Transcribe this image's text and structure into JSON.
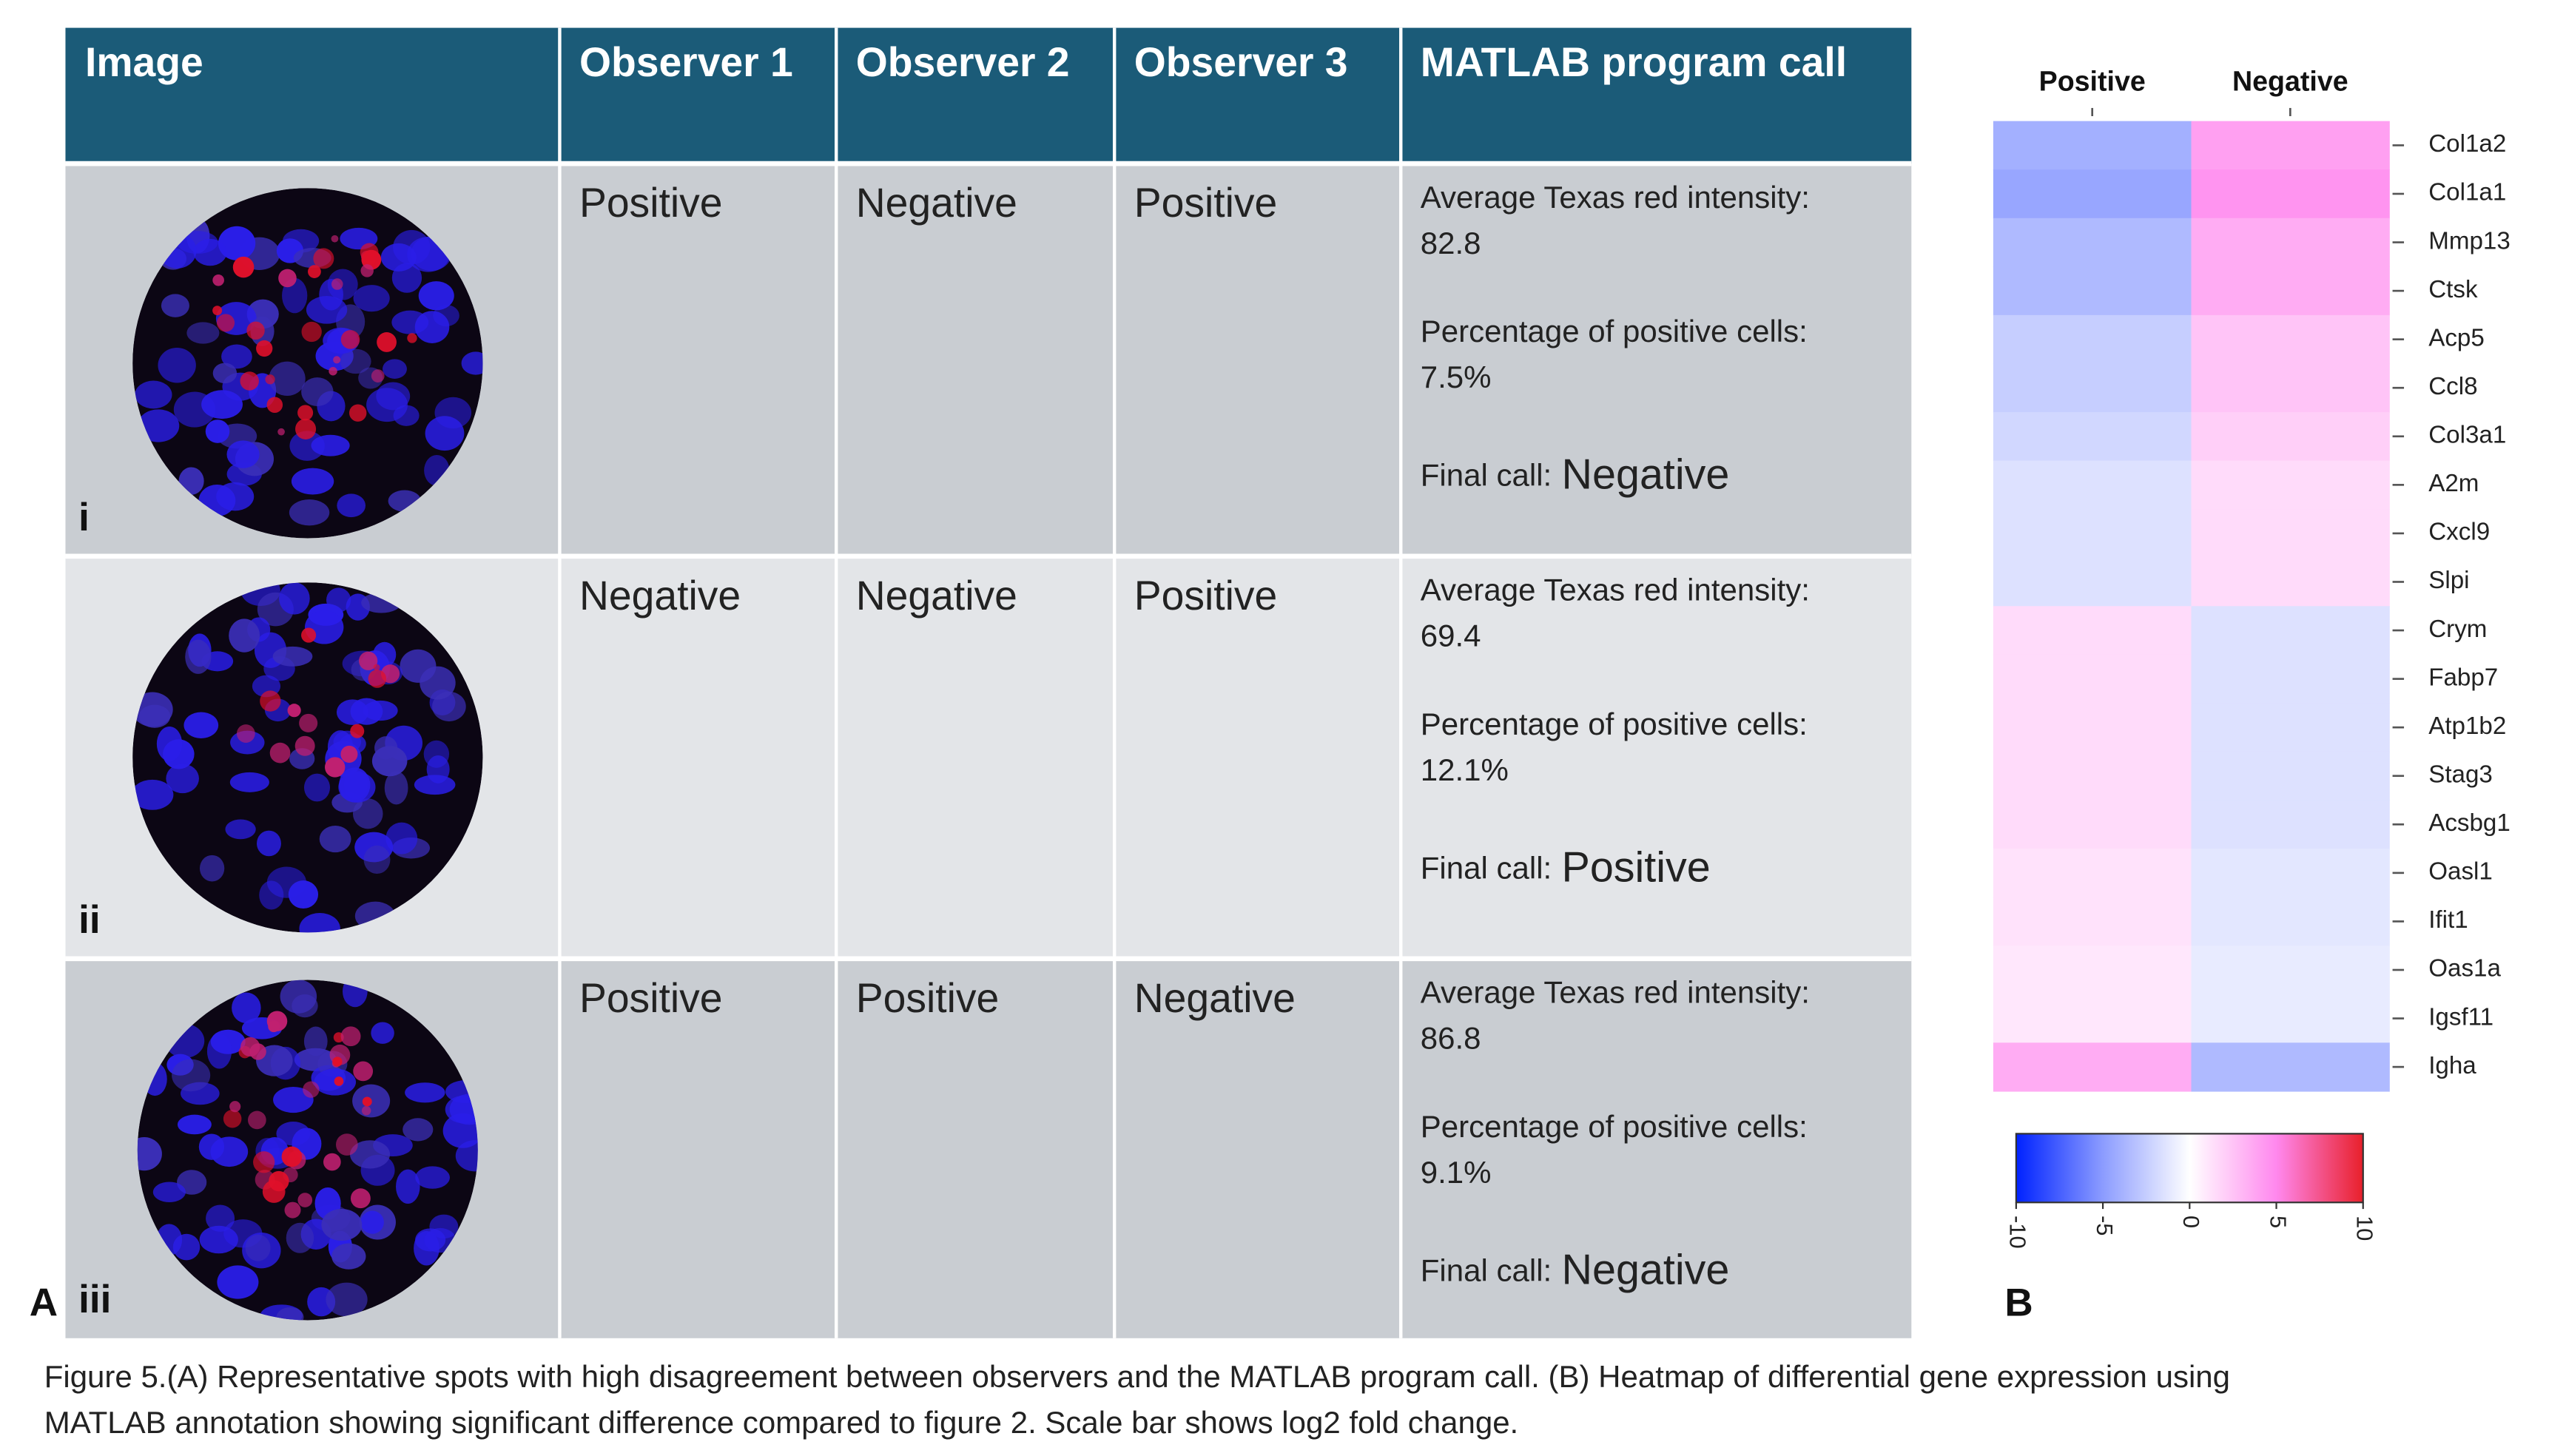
{
  "table": {
    "headers": [
      "Image",
      "Observer 1",
      "Observer 2",
      "Observer 3",
      "MATLAB program call"
    ],
    "rows": [
      {
        "label": "i",
        "observers": [
          "Positive",
          "Negative",
          "Positive"
        ],
        "intensity_label": "Average Texas red intensity:",
        "intensity": "82.8",
        "percentage_label": "Percentage of positive cells:",
        "percentage": "7.5%",
        "final_label": "Final call:",
        "final": "Negative"
      },
      {
        "label": "ii",
        "observers": [
          "Negative",
          "Negative",
          "Positive"
        ],
        "intensity_label": "Average Texas red intensity:",
        "intensity": "69.4",
        "percentage_label": "Percentage of positive cells:",
        "percentage": "12.1%",
        "final_label": "Final call:",
        "final": "Positive"
      },
      {
        "label": "iii",
        "observers": [
          "Positive",
          "Positive",
          "Negative"
        ],
        "intensity_label": "Average Texas red intensity:",
        "intensity": "86.8",
        "percentage_label": "Percentage of positive cells:",
        "percentage": "9.1%",
        "final_label": "Final call:",
        "final": "Negative"
      }
    ],
    "panel_label": "A"
  },
  "heatmap": {
    "type": "heatmap",
    "columns": [
      "Positive",
      "Negative"
    ],
    "genes": [
      "Col1a2",
      "Col1a1",
      "Mmp13",
      "Ctsk",
      "Acp5",
      "Ccl8",
      "Col3a1",
      "A2m",
      "Cxcl9",
      "Slpi",
      "Crym",
      "Fabp7",
      "Atp1b2",
      "Stag3",
      "Acsbg1",
      "Oasl1",
      "Ifit1",
      "Oas1a",
      "Igsf11",
      "Igha"
    ],
    "values": [
      [
        -4,
        4
      ],
      [
        -4.5,
        4.5
      ],
      [
        -3.5,
        3.5
      ],
      [
        -3.5,
        3.5
      ],
      [
        -2.5,
        2.5
      ],
      [
        -2.5,
        2.5
      ],
      [
        -2,
        2
      ],
      [
        -1.5,
        1.5
      ],
      [
        -1.5,
        1.5
      ],
      [
        -1.5,
        1.5
      ],
      [
        1.5,
        -1.5
      ],
      [
        1.5,
        -1.5
      ],
      [
        1.5,
        -1.5
      ],
      [
        1.5,
        -1.5
      ],
      [
        1.5,
        -1.5
      ],
      [
        1.2,
        -1.2
      ],
      [
        1.2,
        -1.2
      ],
      [
        1,
        -1
      ],
      [
        1,
        -1
      ],
      [
        3.5,
        -3.5
      ]
    ],
    "clim": [
      -10,
      10
    ],
    "ticks": [
      -10,
      -5,
      0,
      5,
      10
    ],
    "colors": [
      "#0022ff",
      "#8c9cff",
      "#ffffff",
      "#ff88ee",
      "#e8202a"
    ],
    "panel_label": "B"
  },
  "caption": [
    "Figure 5.(A) Representative spots with high disagreement between observers and the MATLAB program call. (B) Heatmap of differential gene expression using",
    "MATLAB annotation showing significant difference compared to figure 2. Scale bar shows log2 fold change."
  ]
}
